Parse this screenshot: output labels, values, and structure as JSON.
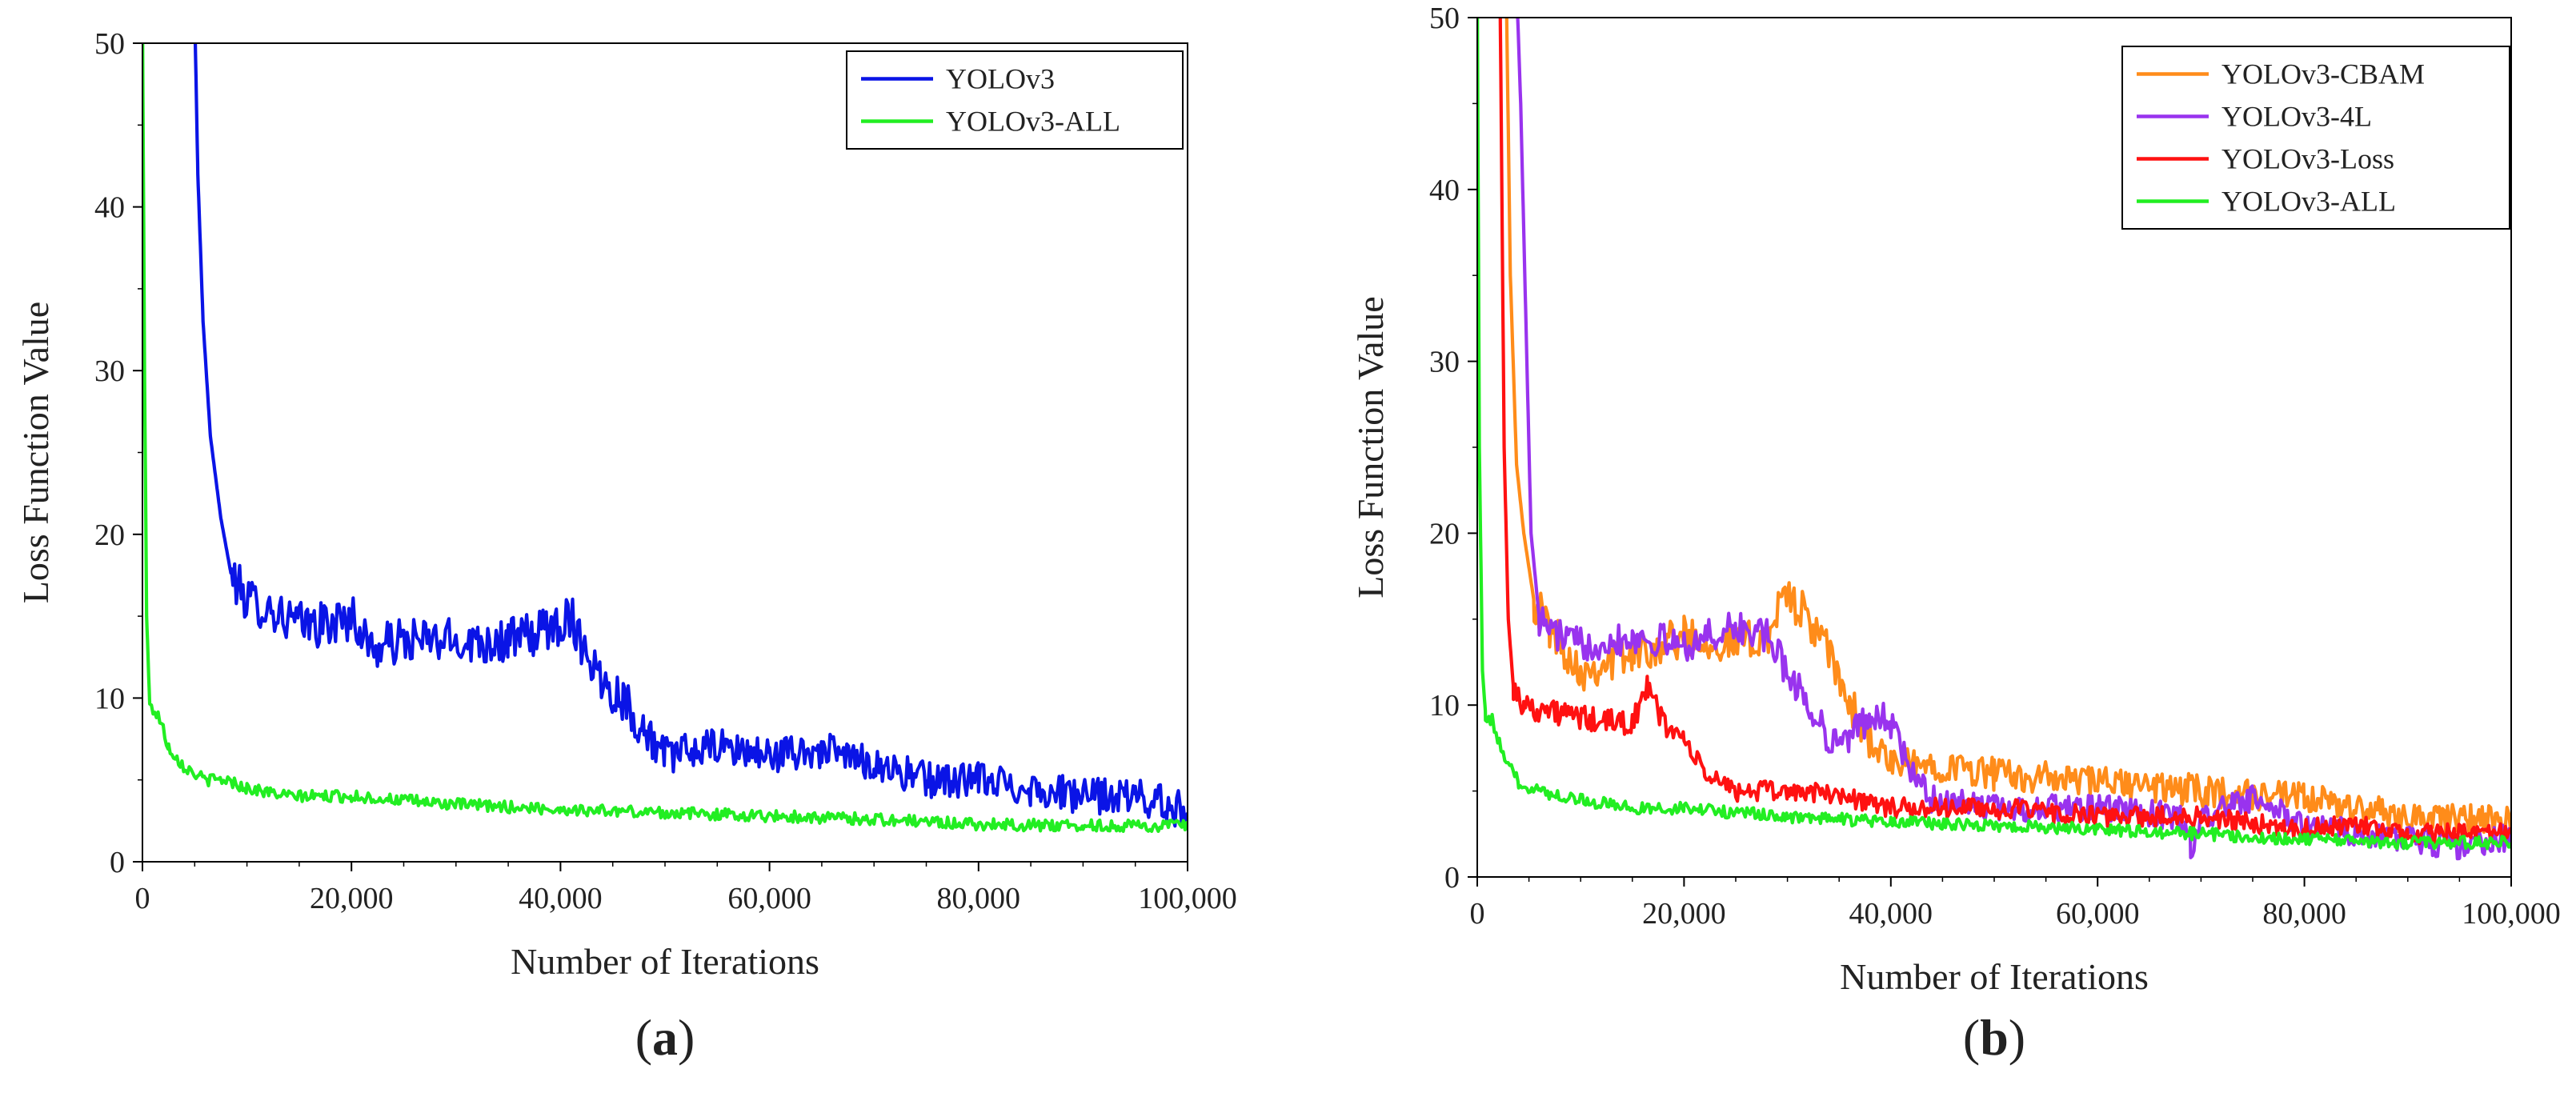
{
  "chart_data": [
    {
      "type": "line",
      "panel_label": "a",
      "xlabel": "Number of Iterations",
      "ylabel": "Loss Function Value",
      "xlim": [
        0,
        100000
      ],
      "ylim": [
        0,
        50
      ],
      "xticks": [
        0,
        20000,
        40000,
        60000,
        80000,
        100000
      ],
      "xtick_labels": [
        "0",
        "20,000",
        "40,000",
        "60,000",
        "80,000",
        "100,000"
      ],
      "yticks": [
        0,
        10,
        20,
        30,
        40,
        50
      ],
      "ytick_labels": [
        "0",
        "10",
        "20",
        "30",
        "40",
        "50"
      ],
      "legend_position": "top-right",
      "series": [
        {
          "name": "YOLOv3",
          "color": "#0a14e6",
          "noise": 1.4,
          "points": [
            [
              5000,
              52
            ],
            [
              5300,
              42
            ],
            [
              5800,
              33
            ],
            [
              6500,
              26
            ],
            [
              7500,
              21
            ],
            [
              8500,
              17.5
            ],
            [
              10000,
              16
            ],
            [
              12000,
              15.5
            ],
            [
              15000,
              14.5
            ],
            [
              18000,
              14.5
            ],
            [
              20000,
              15
            ],
            [
              22000,
              13
            ],
            [
              25000,
              13.5
            ],
            [
              30000,
              13.5
            ],
            [
              35000,
              13.5
            ],
            [
              38000,
              14
            ],
            [
              41000,
              15
            ],
            [
              42000,
              13.5
            ],
            [
              44000,
              11
            ],
            [
              46000,
              10
            ],
            [
              48000,
              8
            ],
            [
              50000,
              6.5
            ],
            [
              55000,
              7
            ],
            [
              60000,
              6.5
            ],
            [
              65000,
              6.8
            ],
            [
              70000,
              6
            ],
            [
              75000,
              5
            ],
            [
              80000,
              5
            ],
            [
              85000,
              4.5
            ],
            [
              90000,
              4
            ],
            [
              95000,
              4
            ],
            [
              98000,
              3.5
            ],
            [
              100000,
              3
            ]
          ]
        },
        {
          "name": "YOLOv3-ALL",
          "color": "#22ee22",
          "noise": 0.45,
          "points": [
            [
              0,
              52
            ],
            [
              200,
              30
            ],
            [
              400,
              15
            ],
            [
              700,
              9.5
            ],
            [
              1500,
              9
            ],
            [
              2500,
              7
            ],
            [
              4000,
              5.8
            ],
            [
              6000,
              5
            ],
            [
              8000,
              5
            ],
            [
              10000,
              4.5
            ],
            [
              14000,
              4
            ],
            [
              20000,
              4
            ],
            [
              30000,
              3.5
            ],
            [
              40000,
              3.2
            ],
            [
              50000,
              3
            ],
            [
              60000,
              2.8
            ],
            [
              70000,
              2.6
            ],
            [
              80000,
              2.3
            ],
            [
              90000,
              2.2
            ],
            [
              100000,
              2.2
            ]
          ]
        }
      ]
    },
    {
      "type": "line",
      "panel_label": "b",
      "xlabel": "Number of Iterations",
      "ylabel": "Loss Function Value",
      "xlim": [
        0,
        100000
      ],
      "ylim": [
        0,
        50
      ],
      "xticks": [
        0,
        20000,
        40000,
        60000,
        80000,
        100000
      ],
      "xtick_labels": [
        "0",
        "20,000",
        "40,000",
        "60,000",
        "80,000",
        "100,000"
      ],
      "yticks": [
        0,
        10,
        20,
        30,
        40,
        50
      ],
      "ytick_labels": [
        "0",
        "10",
        "20",
        "30",
        "40",
        "50"
      ],
      "legend_position": "top-right",
      "series": [
        {
          "name": "YOLOv3-CBAM",
          "color": "#ff8c1a",
          "noise": 1.2,
          "points": [
            [
              2800,
              52
            ],
            [
              3200,
              35
            ],
            [
              3800,
              24
            ],
            [
              4500,
              20
            ],
            [
              5500,
              16
            ],
            [
              7000,
              14.5
            ],
            [
              10000,
              12
            ],
            [
              15000,
              13
            ],
            [
              20000,
              14
            ],
            [
              25000,
              13.5
            ],
            [
              28000,
              14
            ],
            [
              30000,
              16.5
            ],
            [
              32000,
              15
            ],
            [
              34000,
              13
            ],
            [
              36000,
              10
            ],
            [
              38000,
              8
            ],
            [
              40000,
              6.5
            ],
            [
              45000,
              6.5
            ],
            [
              50000,
              6
            ],
            [
              60000,
              5.5
            ],
            [
              70000,
              5
            ],
            [
              80000,
              4.5
            ],
            [
              90000,
              3.5
            ],
            [
              100000,
              3.2
            ]
          ]
        },
        {
          "name": "YOLOv3-4L",
          "color": "#9933ee",
          "noise": 1.0,
          "points": [
            [
              3800,
              52
            ],
            [
              4200,
              45
            ],
            [
              4600,
              35
            ],
            [
              5200,
              20
            ],
            [
              6000,
              15
            ],
            [
              8000,
              14
            ],
            [
              10000,
              13.5
            ],
            [
              15000,
              14
            ],
            [
              20000,
              13.5
            ],
            [
              25000,
              14.5
            ],
            [
              28000,
              14
            ],
            [
              30000,
              12
            ],
            [
              32000,
              10
            ],
            [
              34000,
              8
            ],
            [
              36000,
              8
            ],
            [
              38000,
              9.5
            ],
            [
              40000,
              9
            ],
            [
              42000,
              6
            ],
            [
              44000,
              4.5
            ],
            [
              50000,
              4
            ],
            [
              60000,
              4
            ],
            [
              68000,
              3.5
            ],
            [
              69000,
              1.5
            ],
            [
              70000,
              3.5
            ],
            [
              75000,
              4.5
            ],
            [
              80000,
              3
            ],
            [
              90000,
              2.2
            ],
            [
              95000,
              1.8
            ],
            [
              100000,
              2.3
            ]
          ]
        },
        {
          "name": "YOLOv3-Loss",
          "color": "#ff1111",
          "noise": 0.75,
          "points": [
            [
              2200,
              52
            ],
            [
              2600,
              25
            ],
            [
              3000,
              15
            ],
            [
              3500,
              11
            ],
            [
              4500,
              10
            ],
            [
              8000,
              9.5
            ],
            [
              12000,
              9
            ],
            [
              15000,
              9
            ],
            [
              16500,
              11
            ],
            [
              18000,
              9
            ],
            [
              20000,
              8
            ],
            [
              22000,
              6
            ],
            [
              25000,
              5
            ],
            [
              30000,
              5
            ],
            [
              35000,
              4.8
            ],
            [
              40000,
              4
            ],
            [
              50000,
              4
            ],
            [
              60000,
              3.5
            ],
            [
              70000,
              3.5
            ],
            [
              80000,
              2.8
            ],
            [
              85000,
              3
            ],
            [
              90000,
              2.5
            ],
            [
              100000,
              2.5
            ]
          ]
        },
        {
          "name": "YOLOv3-ALL",
          "color": "#22ee22",
          "noise": 0.45,
          "points": [
            [
              0,
              52
            ],
            [
              200,
              25
            ],
            [
              500,
              12
            ],
            [
              800,
              9.5
            ],
            [
              1500,
              9
            ],
            [
              2500,
              7
            ],
            [
              4000,
              5.5
            ],
            [
              6000,
              5
            ],
            [
              10000,
              4.5
            ],
            [
              15000,
              4
            ],
            [
              20000,
              4
            ],
            [
              30000,
              3.5
            ],
            [
              40000,
              3.2
            ],
            [
              50000,
              3
            ],
            [
              60000,
              2.8
            ],
            [
              70000,
              2.5
            ],
            [
              80000,
              2.2
            ],
            [
              90000,
              2
            ],
            [
              100000,
              2
            ]
          ]
        }
      ]
    }
  ]
}
